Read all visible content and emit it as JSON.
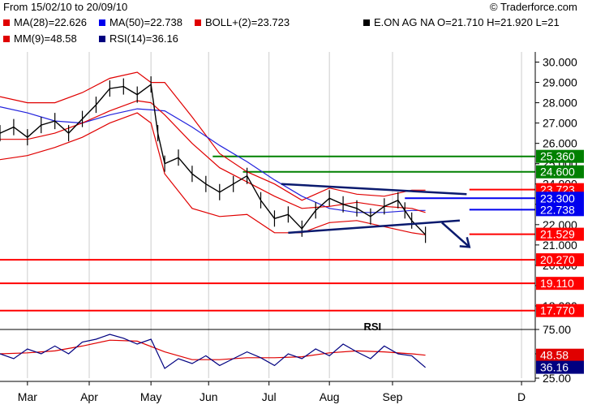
{
  "header": {
    "date_range": "From 15/02/10 to 20/09/10",
    "copyright": "© Traderforce.com"
  },
  "legend": [
    {
      "text": "MA(28)=22.626",
      "color": "#e00000"
    },
    {
      "text": "MA(50)=22.738",
      "color": "#0000ee"
    },
    {
      "text": "BOLL+(2)=23.723",
      "color": "#e00000"
    },
    {
      "text": "E.ON AG NA O=21.710 H=21.920 L=21",
      "color": "#000000"
    },
    {
      "text": "MM(9)=48.58",
      "color": "#e00000"
    },
    {
      "text": "RSI(14)=36.16",
      "color": "#000080"
    }
  ],
  "colors": {
    "price": "#000000",
    "ma28": "#e00000",
    "ma50": "#2222dd",
    "bollinger": "#e00000",
    "support_red": "#ff0000",
    "resistance_green": "#008000",
    "trend_navy": "#0a1a6e",
    "rsi": "#000080",
    "rsi_ma": "#e00000",
    "arrow": "#0a1a6e"
  },
  "chart_data": {
    "type": "line",
    "xlim": [
      0,
      39
    ],
    "ylim": [
      17.0,
      30.5
    ],
    "price_ticks": [
      "30.000",
      "29.000",
      "28.000",
      "27.000",
      "26.000",
      "25.000",
      "24.000",
      "23.000",
      "22.000",
      "21.000",
      "20.000",
      "19.000",
      "18.000"
    ],
    "x_axis": {
      "ticks": [
        {
          "label": "Mar",
          "x": 2
        },
        {
          "label": "Apr",
          "x": 6.5
        },
        {
          "label": "May",
          "x": 11
        },
        {
          "label": "Jun",
          "x": 15.2
        },
        {
          "label": "Jul",
          "x": 19.6
        },
        {
          "label": "Aug",
          "x": 24
        },
        {
          "label": "Sep",
          "x": 28.6
        },
        {
          "label": "D",
          "x": 38
        }
      ]
    },
    "price": {
      "x": [
        0,
        1,
        2,
        3,
        4,
        5,
        6,
        7,
        8,
        9,
        10,
        11,
        11.5,
        12,
        13,
        14,
        15,
        16,
        17,
        18,
        19,
        20,
        21,
        22,
        23,
        24,
        25,
        26,
        27,
        28,
        29,
        29.5,
        30,
        31
      ],
      "y": [
        26.5,
        26.8,
        26.3,
        26.9,
        27.1,
        26.5,
        27.2,
        27.9,
        28.7,
        28.8,
        28.4,
        28.9,
        26.5,
        25.0,
        25.3,
        24.5,
        24.0,
        23.6,
        24.0,
        24.4,
        23.2,
        22.3,
        22.5,
        21.8,
        22.7,
        23.3,
        23.0,
        22.8,
        22.4,
        22.9,
        23.2,
        22.7,
        22.2,
        21.5
      ]
    },
    "ma28": {
      "x": [
        0,
        2,
        4,
        6,
        8,
        10,
        11,
        12,
        14,
        16,
        18,
        20,
        22,
        24,
        26,
        28,
        30,
        31
      ],
      "y": [
        26.2,
        26.2,
        26.5,
        27.0,
        27.6,
        28.1,
        28.0,
        27.4,
        26.0,
        24.8,
        24.1,
        23.4,
        22.8,
        22.9,
        23.1,
        22.9,
        22.8,
        22.6
      ]
    },
    "ma50": {
      "x": [
        0,
        2,
        4,
        6,
        8,
        10,
        12,
        14,
        16,
        18,
        20,
        22,
        24,
        26,
        28,
        30,
        31
      ],
      "y": [
        27.8,
        27.5,
        27.1,
        27.0,
        27.4,
        27.7,
        27.6,
        26.8,
        25.9,
        25.1,
        24.2,
        23.4,
        22.8,
        22.6,
        22.6,
        22.7,
        22.7
      ]
    },
    "boll_upper": {
      "x": [
        0,
        2,
        4,
        6,
        8,
        10,
        11,
        12,
        14,
        16,
        18,
        20,
        22,
        24,
        26,
        28,
        30,
        31
      ],
      "y": [
        28.3,
        28.0,
        28.0,
        28.5,
        29.2,
        29.5,
        29.0,
        29.0,
        27.3,
        25.5,
        24.6,
        24.0,
        23.2,
        23.8,
        23.5,
        23.4,
        23.7,
        23.7
      ]
    },
    "boll_lower": {
      "x": [
        0,
        2,
        4,
        6,
        8,
        10,
        11,
        12,
        14,
        16,
        18,
        20,
        22,
        24,
        26,
        28,
        30,
        31
      ],
      "y": [
        25.2,
        25.4,
        25.8,
        26.3,
        27.0,
        27.5,
        27.0,
        24.5,
        22.8,
        22.4,
        22.5,
        21.6,
        21.6,
        22.1,
        22.2,
        21.9,
        21.6,
        21.5
      ]
    },
    "horizontal_lines": [
      {
        "value": 25.36,
        "label": "25.360",
        "color": "#008000",
        "x_start": 15.5
      },
      {
        "value": 24.6,
        "label": "24.600",
        "color": "#008000",
        "x_start": 17.7
      },
      {
        "value": 23.723,
        "label": "23.723",
        "color": "#ff0000",
        "x_start": 34.2
      },
      {
        "value": 23.3,
        "label": "23.300",
        "color": "#0000ee",
        "x_start": 29.5
      },
      {
        "value": 22.738,
        "label": "22.738",
        "color": "#0000ee",
        "x_start": 34.2
      },
      {
        "value": 21.529,
        "label": "21.529",
        "color": "#ff0000",
        "x_start": 34.2
      },
      {
        "value": 20.27,
        "label": "20.270",
        "color": "#ff0000",
        "x_start": 0
      },
      {
        "value": 19.11,
        "label": "19.110",
        "color": "#ff0000",
        "x_start": 0
      },
      {
        "value": 17.77,
        "label": "17.770",
        "color": "#ff0000",
        "x_start": 0
      }
    ],
    "trend_lines": [
      {
        "x1": 20.5,
        "y1": 24.0,
        "x2": 34.0,
        "y2": 23.5
      },
      {
        "x1": 21.0,
        "y1": 21.6,
        "x2": 33.5,
        "y2": 22.2
      }
    ],
    "arrow": {
      "x1": 32.2,
      "y1": 22.1,
      "x2": 34.2,
      "y2": 20.9
    },
    "rsi": {
      "ylim": [
        25,
        75
      ],
      "ticks": [
        "75.00",
        "50.00",
        "25.00"
      ],
      "label": "RSI",
      "mm_label": "48.58",
      "rsi_label": "36.16",
      "rsi_x": [
        0,
        1,
        2,
        3,
        4,
        5,
        6,
        7,
        8,
        9,
        10,
        11,
        12,
        13,
        14,
        15,
        16,
        17,
        18,
        19,
        20,
        21,
        22,
        23,
        24,
        25,
        26,
        27,
        28,
        29,
        30,
        31
      ],
      "rsi_y": [
        50,
        45,
        55,
        50,
        58,
        50,
        62,
        65,
        70,
        66,
        60,
        65,
        35,
        45,
        40,
        48,
        38,
        45,
        52,
        46,
        38,
        50,
        45,
        55,
        48,
        60,
        52,
        45,
        58,
        50,
        48,
        36
      ],
      "mm_x": [
        0,
        2,
        4,
        6,
        8,
        10,
        12,
        14,
        16,
        18,
        20,
        22,
        24,
        26,
        28,
        30,
        31
      ],
      "mm_y": [
        50,
        51,
        53,
        58,
        64,
        63,
        52,
        44,
        44,
        46,
        46,
        47,
        51,
        53,
        52,
        50,
        48.6
      ]
    }
  }
}
